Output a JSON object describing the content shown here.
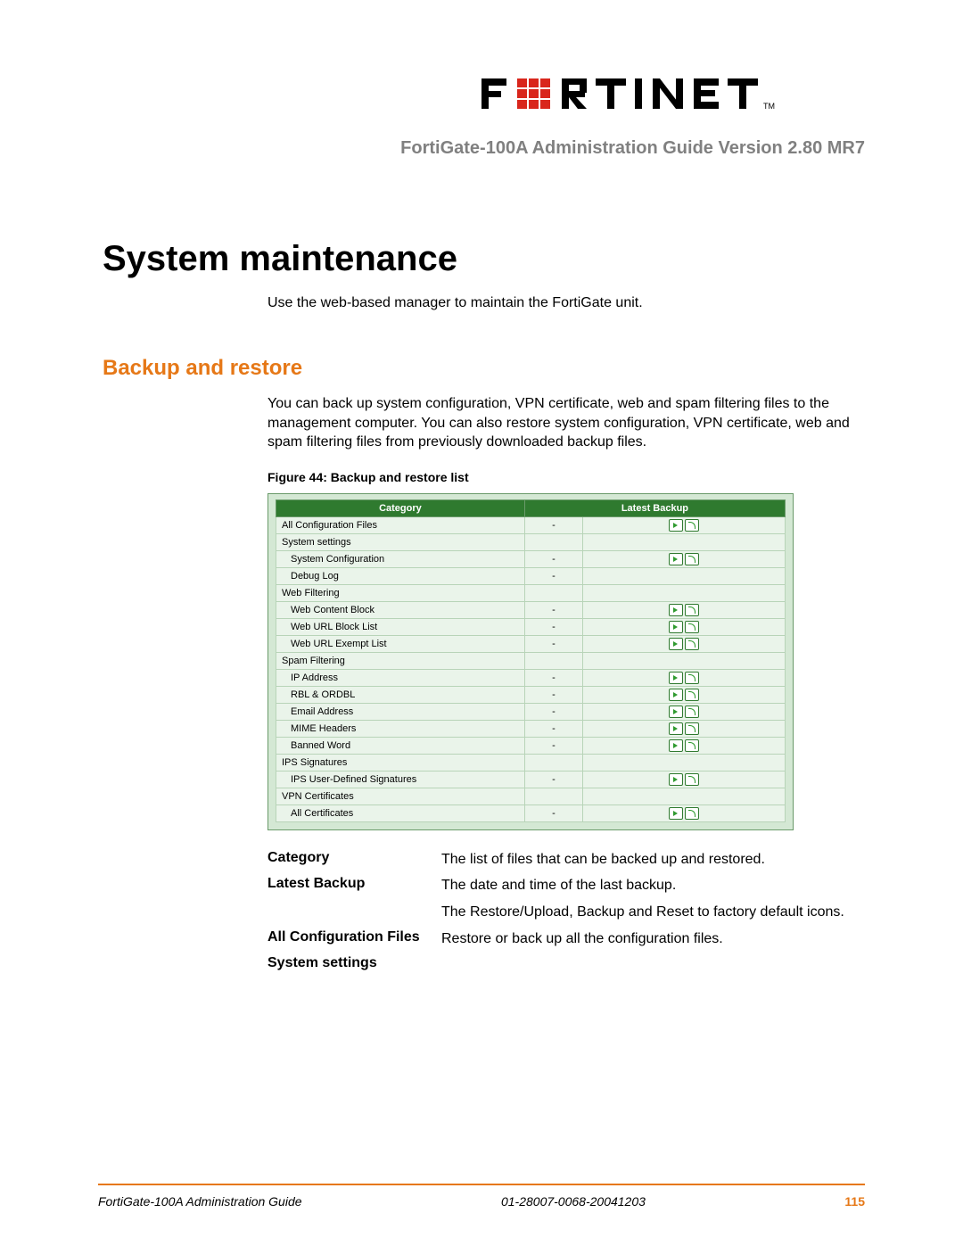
{
  "brand": {
    "name": "FORTINET",
    "logo_text_color": "#000000",
    "logo_accent_color": "#d9261c"
  },
  "header": {
    "subtitle": "FortiGate-100A Administration Guide Version 2.80 MR7"
  },
  "chapter_title": "System maintenance",
  "intro": "Use the web-based manager to maintain the FortiGate unit.",
  "section_title": "Backup and restore",
  "section_body": "You can back up system configuration, VPN certificate, web and spam filtering files to the management computer. You can also restore system configuration, VPN certificate, web and spam filtering files from previously downloaded backup files.",
  "figure_caption": "Figure 44: Backup and restore list",
  "screenshot": {
    "columns": [
      "Category",
      "Latest Backup"
    ],
    "colors": {
      "header_bg": "#2f7a2f",
      "header_fg": "#ffffff",
      "row_bg": "#eaf4ea",
      "panel_bg": "#d4e8d4",
      "border": "#6a9a6a"
    },
    "rows": [
      {
        "label": "All Configuration Files",
        "indent": false,
        "latest": "-",
        "icons": true
      },
      {
        "label": "System settings",
        "indent": false,
        "latest": "",
        "icons": false
      },
      {
        "label": "System Configuration",
        "indent": true,
        "latest": "-",
        "icons": true
      },
      {
        "label": "Debug Log",
        "indent": true,
        "latest": "-",
        "icons": false
      },
      {
        "label": "Web Filtering",
        "indent": false,
        "latest": "",
        "icons": false
      },
      {
        "label": "Web Content Block",
        "indent": true,
        "latest": "-",
        "icons": true
      },
      {
        "label": "Web URL Block List",
        "indent": true,
        "latest": "-",
        "icons": true
      },
      {
        "label": "Web URL Exempt List",
        "indent": true,
        "latest": "-",
        "icons": true
      },
      {
        "label": "Spam Filtering",
        "indent": false,
        "latest": "",
        "icons": false
      },
      {
        "label": "IP Address",
        "indent": true,
        "latest": "-",
        "icons": true
      },
      {
        "label": "RBL & ORDBL",
        "indent": true,
        "latest": "-",
        "icons": true
      },
      {
        "label": "Email Address",
        "indent": true,
        "latest": "-",
        "icons": true
      },
      {
        "label": "MIME Headers",
        "indent": true,
        "latest": "-",
        "icons": true
      },
      {
        "label": "Banned Word",
        "indent": true,
        "latest": "-",
        "icons": true
      },
      {
        "label": "IPS Signatures",
        "indent": false,
        "latest": "",
        "icons": false
      },
      {
        "label": "IPS User-Defined Signatures",
        "indent": true,
        "latest": "-",
        "icons": true
      },
      {
        "label": "VPN Certificates",
        "indent": false,
        "latest": "",
        "icons": false
      },
      {
        "label": "All Certificates",
        "indent": true,
        "latest": "-",
        "icons": true
      }
    ]
  },
  "definitions": [
    {
      "term": "Category",
      "desc": "The list of files that can be backed up and restored."
    },
    {
      "term": "Latest Backup",
      "desc": "The date and time of the last backup."
    },
    {
      "term": "",
      "desc": "The Restore/Upload, Backup and Reset to factory default icons."
    },
    {
      "term": "All Configuration Files",
      "desc": "Restore or back up all the configuration files."
    },
    {
      "term": "System settings",
      "desc": ""
    }
  ],
  "footer": {
    "left": "FortiGate-100A Administration Guide",
    "center": "01-28007-0068-20041203",
    "page": "115",
    "rule_color": "#e67817"
  }
}
